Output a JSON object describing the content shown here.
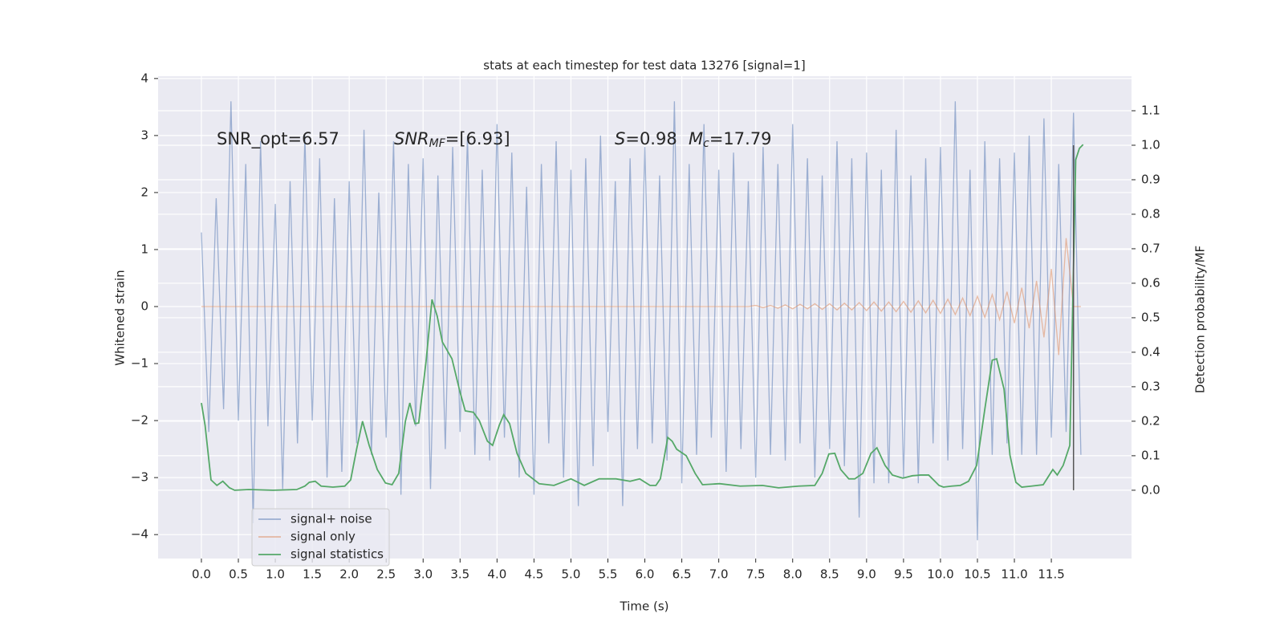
{
  "chart_data": {
    "type": "line",
    "title": "stats at each timestep for test data 13276 [signal=1]",
    "xlabel": "Time (s)",
    "ylabel": "Whitened strain",
    "y2label": "Detection probability/MF",
    "xlim": [
      -0.586,
      12.585
    ],
    "ylim": [
      -4.42,
      4.04
    ],
    "y2lim": [
      -0.198,
      1.2
    ],
    "xticks": [
      {
        "value": 0,
        "label": "0.0"
      },
      0.5,
      {
        "value": 1,
        "label": "1.0"
      },
      1.5,
      {
        "value": 2,
        "label": "2.0"
      },
      2.5,
      {
        "value": 3,
        "label": "3.0"
      },
      3.5,
      {
        "value": 4,
        "label": "4.0"
      },
      4.5,
      {
        "value": 5,
        "label": "5.0"
      },
      5.5,
      {
        "value": 6,
        "label": "6.0"
      },
      6.5,
      {
        "value": 7,
        "label": "7.0"
      },
      7.5,
      {
        "value": 8,
        "label": "8.0"
      },
      8.5,
      {
        "value": 9,
        "label": "9.0"
      },
      9.5,
      {
        "value": 10,
        "label": "10.0"
      },
      10.5,
      {
        "value": 11,
        "label": "11.0"
      },
      11.5
    ],
    "yticks": [
      {
        "value": -4,
        "label": "−4"
      },
      {
        "value": -3,
        "label": "−3"
      },
      {
        "value": -2,
        "label": "−2"
      },
      {
        "value": -1,
        "label": "−1"
      },
      0,
      1,
      2,
      3,
      4
    ],
    "y2ticks": [
      {
        "value": 0,
        "label": "0.0"
      },
      0.1,
      0.2,
      0.3,
      0.4,
      0.5,
      0.6,
      0.7,
      0.8,
      0.9,
      {
        "value": 1,
        "label": "1.0"
      },
      1.1
    ],
    "grid": true,
    "legend": "lower left",
    "x": [
      0,
      0.1,
      0.2,
      0.3,
      0.4,
      0.5,
      0.6,
      0.7,
      0.8,
      0.9,
      1,
      1.1,
      1.2,
      1.3,
      1.4,
      1.5,
      1.6,
      1.7,
      1.8,
      1.9,
      2,
      2.1,
      2.2,
      2.3,
      2.4,
      2.5,
      2.6,
      2.7,
      2.8,
      2.9,
      3,
      3.1,
      3.2,
      3.3,
      3.4,
      3.5,
      3.6,
      3.7,
      3.8,
      3.9,
      4,
      4.1,
      4.2,
      4.3,
      4.4,
      4.5,
      4.6,
      4.7,
      4.8,
      4.9,
      5,
      5.1,
      5.2,
      5.3,
      5.4,
      5.5,
      5.6,
      5.7,
      5.8,
      5.9,
      6,
      6.1,
      6.2,
      6.3,
      6.4,
      6.5,
      6.6,
      6.7,
      6.8,
      6.9,
      7,
      7.1,
      7.2,
      7.3,
      7.4,
      7.5,
      7.6,
      7.7,
      7.8,
      7.9,
      8,
      8.1,
      8.2,
      8.3,
      8.4,
      8.5,
      8.6,
      8.7,
      8.8,
      8.9,
      9,
      9.1,
      9.2,
      9.3,
      9.4,
      9.5,
      9.6,
      9.7,
      9.8,
      9.9,
      10,
      10.1,
      10.2,
      10.3,
      10.4,
      10.5,
      10.6,
      10.7,
      10.8,
      10.9,
      11,
      11.1,
      11.2,
      11.3,
      11.4,
      11.5,
      11.6,
      11.7,
      11.8,
      11.9
    ],
    "series": [
      {
        "name": "signal+ noise",
        "color": "#4c72b0",
        "values": [
          1.3,
          -2.2,
          1.9,
          -1.8,
          3.6,
          -2.0,
          2.5,
          -3.8,
          2.9,
          -2.1,
          1.8,
          -3.2,
          2.2,
          -2.4,
          3.0,
          -2.0,
          2.6,
          -3.0,
          1.9,
          -2.9,
          2.2,
          -2.4,
          3.1,
          -2.6,
          2.0,
          -2.3,
          2.9,
          -3.3,
          2.5,
          -2.1,
          2.6,
          -3.2,
          2.3,
          -2.5,
          2.8,
          -2.2,
          3.0,
          -2.6,
          2.4,
          -2.7,
          3.2,
          -2.3,
          2.7,
          -3.0,
          2.1,
          -3.3,
          2.5,
          -2.4,
          2.9,
          -3.0,
          2.4,
          -3.5,
          2.6,
          -2.8,
          3.0,
          -2.2,
          2.2,
          -3.5,
          2.6,
          -2.5,
          2.8,
          -2.4,
          2.3,
          -2.7,
          3.6,
          -3.1,
          2.5,
          -2.6,
          3.2,
          -2.3,
          2.4,
          -2.9,
          2.7,
          -2.5,
          2.2,
          -3.0,
          2.8,
          -2.6,
          2.5,
          -2.7,
          3.2,
          -2.4,
          2.6,
          -3.0,
          2.3,
          -2.5,
          2.9,
          -2.8,
          2.6,
          -3.7,
          2.7,
          -3.1,
          2.4,
          -3.1,
          3.1,
          -3.0,
          2.3,
          -3.1,
          2.6,
          -2.4,
          2.8,
          -2.7,
          3.6,
          -2.5,
          2.4,
          -4.1,
          2.9,
          -2.6,
          2.6,
          -2.4,
          2.7,
          -2.6,
          3.0,
          -2.6,
          3.3,
          -2.3,
          2.5,
          -2.2,
          3.4,
          -2.6
        ]
      },
      {
        "name": "signal only",
        "color": "#dd8452",
        "values": [
          0,
          0,
          0,
          0,
          0,
          0,
          0,
          0,
          0,
          0,
          0,
          0,
          0,
          0,
          0,
          0,
          0,
          0,
          0,
          0,
          0,
          0,
          0,
          0,
          0,
          0,
          0,
          0,
          0,
          0,
          0,
          0,
          0,
          0,
          0,
          0,
          0,
          0,
          0,
          0,
          0,
          0,
          0,
          0,
          0,
          0,
          0,
          0,
          0,
          0,
          0,
          0,
          0,
          0,
          0,
          0,
          0,
          0,
          0,
          0,
          0,
          0,
          0,
          0,
          0,
          0,
          0,
          0,
          0,
          0,
          0,
          0,
          0,
          0,
          0,
          0.02,
          -0.02,
          0.02,
          -0.03,
          0.03,
          -0.04,
          0.04,
          -0.04,
          0.05,
          -0.05,
          0.05,
          -0.06,
          0.06,
          -0.06,
          0.07,
          -0.07,
          0.08,
          -0.08,
          0.08,
          -0.09,
          0.09,
          -0.1,
          0.1,
          -0.11,
          0.11,
          -0.12,
          0.13,
          -0.14,
          0.15,
          -0.16,
          0.18,
          -0.19,
          0.21,
          -0.23,
          0.26,
          -0.29,
          0.33,
          -0.38,
          0.45,
          -0.54,
          0.66,
          -0.85,
          1.2,
          0,
          0
        ]
      },
      {
        "name": "signal statistics",
        "color": "#55a868",
        "axis": "y2",
        "x": [
          0,
          0.05,
          0.13,
          0.21,
          0.29,
          0.38,
          0.45,
          0.64,
          0.97,
          1.29,
          1.4,
          1.46,
          1.54,
          1.62,
          1.78,
          1.94,
          2.02,
          2.1,
          2.18,
          2.27,
          2.38,
          2.49,
          2.58,
          2.67,
          2.76,
          2.82,
          2.89,
          2.94,
          3.04,
          3.12,
          3.19,
          3.26,
          3.39,
          3.5,
          3.57,
          3.68,
          3.76,
          3.87,
          3.94,
          4.03,
          4.09,
          4.17,
          4.27,
          4.39,
          4.57,
          4.77,
          5,
          5.18,
          5.38,
          5.61,
          5.8,
          5.93,
          6.07,
          6.15,
          6.21,
          6.31,
          6.37,
          6.43,
          6.56,
          6.68,
          6.78,
          7.01,
          7.29,
          7.59,
          7.81,
          8.08,
          8.3,
          8.4,
          8.49,
          8.57,
          8.65,
          8.76,
          8.84,
          8.95,
          9.06,
          9.14,
          9.25,
          9.35,
          9.49,
          9.62,
          9.73,
          9.84,
          9.98,
          10.04,
          10.15,
          10.27,
          10.38,
          10.49,
          10.6,
          10.7,
          10.76,
          10.86,
          10.94,
          11.02,
          11.1,
          11.23,
          11.39,
          11.52,
          11.58,
          11.66,
          11.75,
          11.83,
          11.88,
          11.93
        ],
        "values": [
          0.253,
          0.188,
          0.03,
          0.014,
          0.026,
          0.007,
          0,
          0.002,
          0,
          0.002,
          0.012,
          0.023,
          0.026,
          0.012,
          0.009,
          0.012,
          0.03,
          0.119,
          0.2,
          0.13,
          0.06,
          0.021,
          0.016,
          0.049,
          0.2,
          0.253,
          0.193,
          0.195,
          0.374,
          0.553,
          0.505,
          0.43,
          0.381,
          0.284,
          0.23,
          0.226,
          0.202,
          0.142,
          0.13,
          0.188,
          0.219,
          0.193,
          0.107,
          0.049,
          0.019,
          0.014,
          0.033,
          0.014,
          0.033,
          0.033,
          0.026,
          0.033,
          0.014,
          0.014,
          0.033,
          0.153,
          0.142,
          0.119,
          0.1,
          0.049,
          0.016,
          0.019,
          0.012,
          0.014,
          0.007,
          0.012,
          0.014,
          0.049,
          0.105,
          0.107,
          0.06,
          0.033,
          0.033,
          0.049,
          0.107,
          0.123,
          0.072,
          0.044,
          0.035,
          0.042,
          0.044,
          0.044,
          0.014,
          0.009,
          0.012,
          0.014,
          0.026,
          0.072,
          0.235,
          0.377,
          0.381,
          0.293,
          0.102,
          0.023,
          0.009,
          0.012,
          0.016,
          0.06,
          0.044,
          0.072,
          0.13,
          0.958,
          0.991,
          1.002
        ]
      }
    ],
    "vline": {
      "x": 11.8,
      "y2": [
        0,
        1.0
      ],
      "color": "#555555"
    },
    "annotations": [
      {
        "text": "SNR_opt=6.57"
      },
      {
        "var": "SNR",
        "sub": "MF",
        "text": "=[6.93]"
      },
      {
        "var": "S",
        "text": "=0.98"
      },
      {
        "var": "M",
        "sub": "c",
        "text": "=17.79"
      }
    ]
  }
}
